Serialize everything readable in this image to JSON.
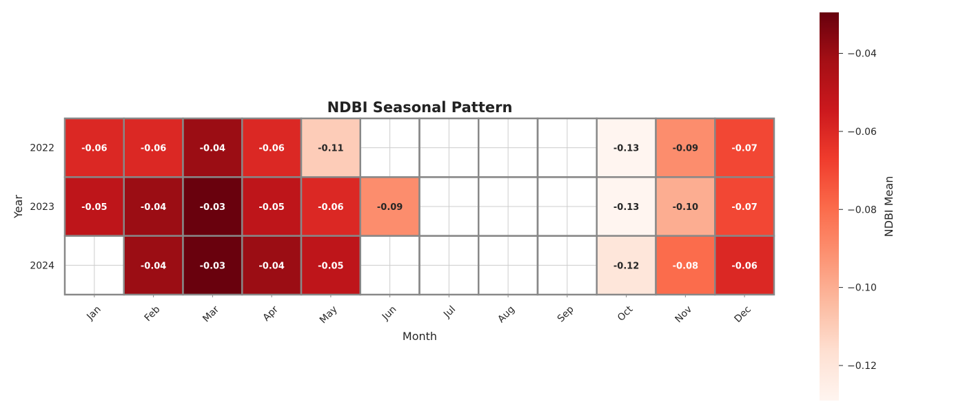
{
  "chart_data": {
    "type": "heatmap",
    "title": "NDBI Seasonal Pattern",
    "xlabel": "Month",
    "ylabel": "Year",
    "x": [
      "Jan",
      "Feb",
      "Mar",
      "Apr",
      "May",
      "Jun",
      "Jul",
      "Aug",
      "Sep",
      "Oct",
      "Nov",
      "Dec"
    ],
    "y": [
      "2022",
      "2023",
      "2024"
    ],
    "values": [
      [
        -0.06,
        -0.06,
        -0.04,
        -0.06,
        -0.11,
        null,
        null,
        null,
        null,
        -0.13,
        -0.09,
        -0.07
      ],
      [
        -0.05,
        -0.04,
        -0.03,
        -0.05,
        -0.06,
        -0.09,
        null,
        null,
        null,
        -0.13,
        -0.1,
        -0.07
      ],
      [
        null,
        -0.04,
        -0.03,
        -0.04,
        -0.05,
        null,
        null,
        null,
        null,
        -0.12,
        -0.08,
        -0.06
      ]
    ],
    "colorbar": {
      "label": "NDBI Mean",
      "range": [
        -0.129,
        -0.0295
      ],
      "ticks": [
        "−0.04",
        "−0.06",
        "−0.08",
        "−0.10",
        "−0.12"
      ],
      "tick_values": [
        -0.04,
        -0.06,
        -0.08,
        -0.1,
        -0.12
      ]
    },
    "colormap": "Reds",
    "grid": true
  }
}
